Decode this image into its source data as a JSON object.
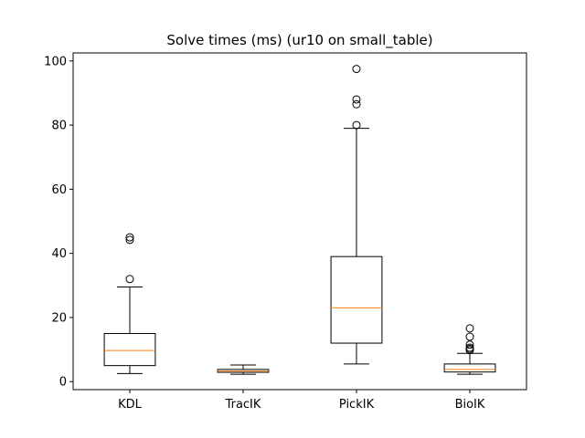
{
  "chart_data": {
    "type": "box",
    "title": "Solve times (ms) (ur10 on small_table)",
    "xlabel": "",
    "ylabel": "",
    "ylim": [
      -2.5,
      102.5
    ],
    "yticks": [
      0,
      20,
      40,
      60,
      80,
      100
    ],
    "categories": [
      "KDL",
      "TracIK",
      "PickIK",
      "BioIK"
    ],
    "boxes": [
      {
        "category": "KDL",
        "whisker_low": 2.5,
        "q1": 5.0,
        "median": 9.7,
        "q3": 15.0,
        "whisker_high": 29.5,
        "outliers": [
          32.0,
          44.2,
          45.0
        ]
      },
      {
        "category": "TracIK",
        "whisker_low": 2.3,
        "q1": 2.9,
        "median": 3.3,
        "q3": 3.8,
        "whisker_high": 5.2,
        "outliers": []
      },
      {
        "category": "PickIK",
        "whisker_low": 5.5,
        "q1": 12.0,
        "median": 23.0,
        "q3": 39.0,
        "whisker_high": 79.0,
        "outliers": [
          80.0,
          86.5,
          88.0,
          97.5
        ]
      },
      {
        "category": "BioIK",
        "whisker_low": 2.3,
        "q1": 3.0,
        "median": 3.8,
        "q3": 5.5,
        "whisker_high": 8.8,
        "outliers": [
          9.8,
          10.2,
          10.6,
          11.5,
          14.0,
          16.6
        ]
      }
    ],
    "colors": {
      "box": "#000000",
      "median": "#ff7f0e",
      "background": "#ffffff"
    },
    "grid": false,
    "legend": "none"
  }
}
